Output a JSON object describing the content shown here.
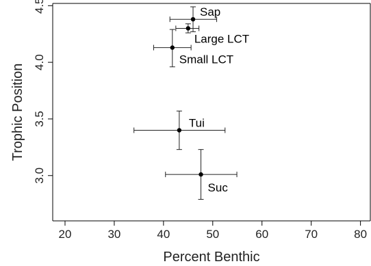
{
  "chart_data": {
    "type": "scatter",
    "title": "",
    "xlabel": "Percent Benthic",
    "ylabel": "Trophic  Position",
    "xlim": [
      17.5,
      82
    ],
    "ylim": [
      2.6,
      4.52
    ],
    "xticks": [
      20,
      30,
      40,
      50,
      60,
      70,
      80
    ],
    "yticks": [
      3.0,
      3.5,
      4.0,
      4.5
    ],
    "ytick_labels": [
      "3.0",
      "3.5",
      "4.0",
      "4.5"
    ],
    "grid": false,
    "points": [
      {
        "label": "Sap",
        "x": 46.0,
        "y": 4.38,
        "xerr": [
          41.3,
          50.8
        ],
        "yerr": [
          4.27,
          4.49
        ]
      },
      {
        "label": "Large LCT",
        "x": 45.0,
        "y": 4.3,
        "xerr": [
          42.5,
          47.2
        ],
        "yerr": [
          4.26,
          4.34
        ]
      },
      {
        "label": "Small LCT",
        "x": 41.8,
        "y": 4.13,
        "xerr": [
          38.0,
          45.6
        ],
        "yerr": [
          3.96,
          4.29
        ]
      },
      {
        "label": "Tui",
        "x": 43.2,
        "y": 3.4,
        "xerr": [
          34.0,
          52.5
        ],
        "yerr": [
          3.23,
          3.57
        ]
      },
      {
        "label": "Suc",
        "x": 47.6,
        "y": 3.01,
        "xerr": [
          40.4,
          54.9
        ],
        "yerr": [
          2.79,
          3.23
        ]
      }
    ]
  }
}
